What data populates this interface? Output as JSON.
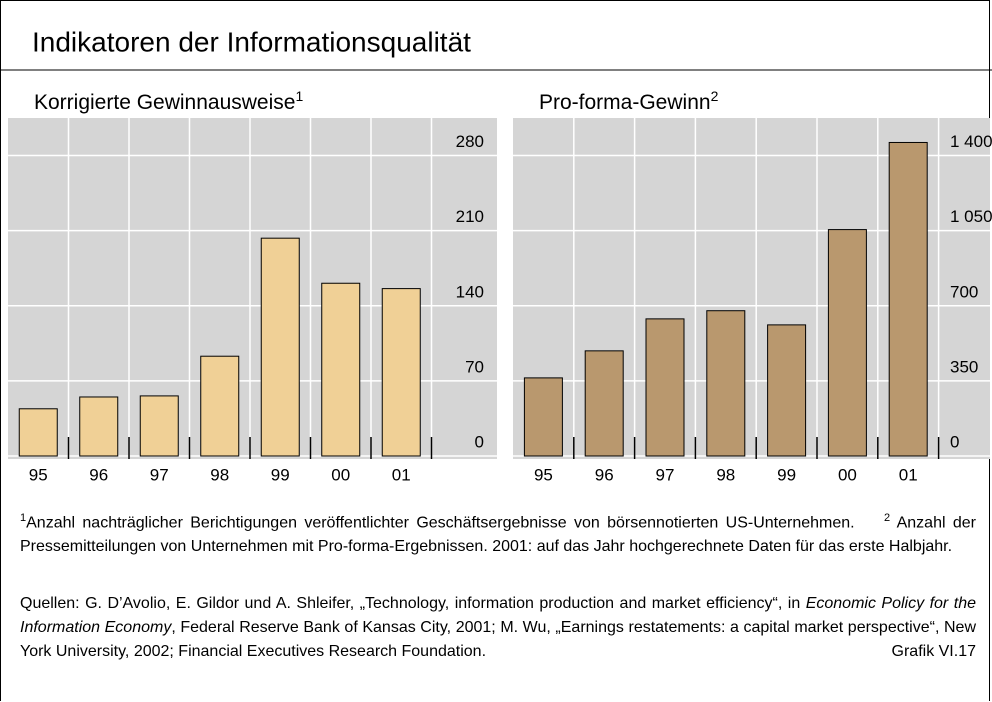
{
  "title": "Indikatoren der Informationsqualität",
  "chart_data": [
    {
      "type": "bar",
      "title": "Korrigierte Gewinnausweise",
      "title_note": "1",
      "categories": [
        "95",
        "96",
        "97",
        "98",
        "99",
        "00",
        "01"
      ],
      "values": [
        44,
        55,
        56,
        93,
        203,
        161,
        156
      ],
      "color": "#f0d096",
      "ylim": [
        0,
        315
      ],
      "yticks": [
        0,
        70,
        140,
        210,
        280
      ],
      "grid": true
    },
    {
      "type": "bar",
      "title": "Pro-forma-Gewinn",
      "title_note": "2",
      "categories": [
        "95",
        "96",
        "97",
        "98",
        "99",
        "00",
        "01"
      ],
      "values": [
        364,
        490,
        639,
        677,
        611,
        1055,
        1461
      ],
      "color": "#b9986e",
      "ylim": [
        0,
        1575
      ],
      "yticks": [
        0,
        350,
        700,
        {
          "value": 1050,
          "label": "1 050"
        },
        {
          "value": 1400,
          "label": "1 400"
        }
      ],
      "grid": true
    }
  ],
  "footnotes": [
    {
      "marker": "1",
      "text": "Anzahl nachträglicher Berichtigungen veröffentlichter Geschäftsergebnisse von börsennotierten US-Unternehmen."
    },
    {
      "marker": "2",
      "text": "Anzahl der Pressemitteilungen von Unternehmen mit Pro-forma-Ergebnissen. 2001: auf das Jahr hochgerechnete Daten für das erste Halbjahr."
    }
  ],
  "sources": {
    "before": "Quellen: G. D’Avolio, E. Gildor und A. Shleifer, „Technology, information production and market efficiency“, in",
    "italic": "Economic Policy for the Information Economy",
    "after": ", Federal Reserve Bank of Kansas City, 2001; M. Wu, „Earnings restatements: a capital market perspective“, New York University, 2002; Financial Executives Research Foundation."
  },
  "figure_label": "Grafik VI.17"
}
